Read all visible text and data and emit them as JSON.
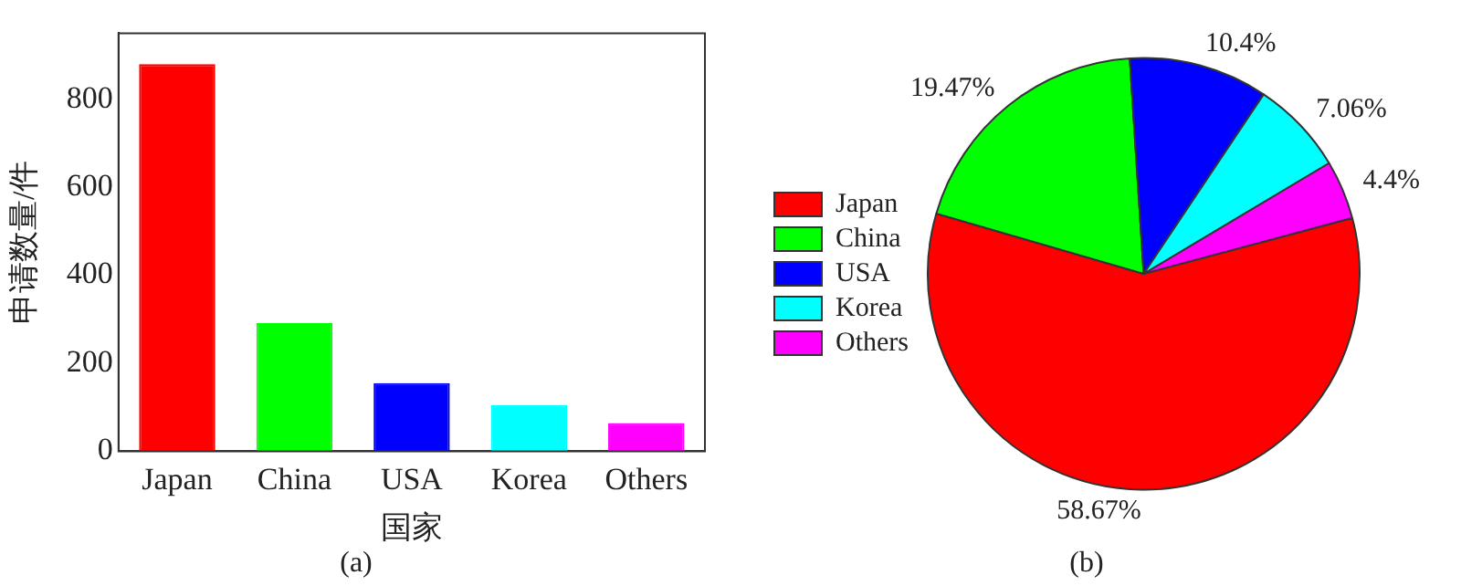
{
  "chart_data": [
    {
      "type": "bar",
      "categories": [
        "Japan",
        "China",
        "USA",
        "Korea",
        "Others"
      ],
      "values": [
        880,
        291,
        155,
        105,
        64
      ],
      "colors": [
        "#ff0000",
        "#00ff00",
        "#0000ff",
        "#00ffff",
        "#ff00ff"
      ],
      "xlabel": "国家",
      "ylabel": "申请数量/件",
      "ylim": [
        0,
        950
      ],
      "yticks": [
        0,
        200,
        400,
        600,
        800
      ],
      "grid": false,
      "legend": false,
      "annotations": [
        "(a)"
      ]
    },
    {
      "type": "pie",
      "categories": [
        "Japan",
        "China",
        "USA",
        "Korea",
        "Others"
      ],
      "values": [
        58.67,
        19.47,
        10.4,
        7.06,
        4.4
      ],
      "value_labels": [
        "58.67%",
        "19.47%",
        "10.4%",
        "7.06%",
        "4.4%"
      ],
      "colors": [
        "#ff0000",
        "#00ff00",
        "#0000ff",
        "#00ffff",
        "#ff00ff"
      ],
      "legend": "left",
      "annotations": [
        "(b)"
      ]
    }
  ]
}
